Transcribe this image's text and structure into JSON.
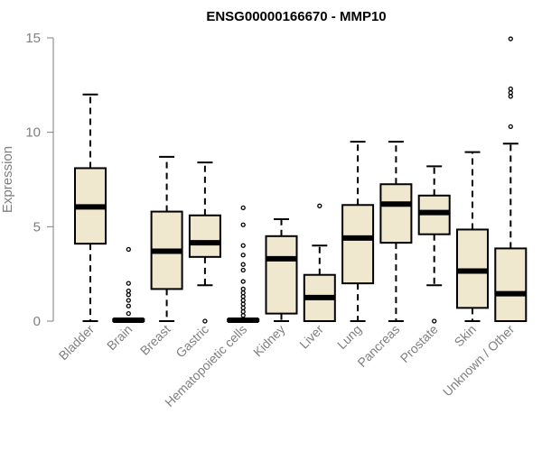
{
  "chart_data": {
    "type": "boxplot",
    "title": "ENSG00000166670 - MMP10",
    "ylabel": "Expression",
    "xlabel": "",
    "ylim": [
      0,
      15
    ],
    "yticks": [
      0,
      5,
      10,
      15
    ],
    "grid": false,
    "box_color": "#efe8cf",
    "categories": [
      "Bladder",
      "Brain",
      "Breast",
      "Gastric",
      "Hematopoietic cells",
      "Kidney",
      "Liver",
      "Lung",
      "Pancreas",
      "Prostate",
      "Skin",
      "Unknown / Other"
    ],
    "boxes": [
      {
        "name": "Bladder",
        "min": 0,
        "q1": 4.1,
        "median": 6.05,
        "q3": 8.1,
        "max": 12.0,
        "outliers": []
      },
      {
        "name": "Brain",
        "min": 0,
        "q1": 0,
        "median": 0.05,
        "q3": 0.1,
        "max": 0.1,
        "outliers": [
          0.4,
          0.8,
          1.1,
          1.4,
          1.6,
          2.0,
          3.8
        ]
      },
      {
        "name": "Breast",
        "min": 0,
        "q1": 1.7,
        "median": 3.7,
        "q3": 5.8,
        "max": 8.7,
        "outliers": []
      },
      {
        "name": "Gastric",
        "min": 1.9,
        "q1": 3.4,
        "median": 4.15,
        "q3": 5.6,
        "max": 8.4,
        "outliers": [
          0.0
        ]
      },
      {
        "name": "Hematopoietic cells",
        "min": 0,
        "q1": 0,
        "median": 0.05,
        "q3": 0.1,
        "max": 0.1,
        "outliers": [
          0.3,
          0.5,
          0.7,
          0.9,
          1.1,
          1.3,
          1.5,
          1.7,
          2.1,
          2.7,
          3.0,
          3.5,
          4.0,
          5.1,
          6.0
        ]
      },
      {
        "name": "Kidney",
        "min": 0,
        "q1": 0.4,
        "median": 3.3,
        "q3": 4.5,
        "max": 5.4,
        "outliers": []
      },
      {
        "name": "Liver",
        "min": 0,
        "q1": 0,
        "median": 1.25,
        "q3": 2.45,
        "max": 4.0,
        "outliers": [
          6.1
        ]
      },
      {
        "name": "Lung",
        "min": 0,
        "q1": 2.0,
        "median": 4.4,
        "q3": 6.15,
        "max": 9.5,
        "outliers": []
      },
      {
        "name": "Pancreas",
        "min": 0,
        "q1": 4.15,
        "median": 6.2,
        "q3": 7.25,
        "max": 9.5,
        "outliers": []
      },
      {
        "name": "Prostate",
        "min": 1.9,
        "q1": 4.6,
        "median": 5.75,
        "q3": 6.65,
        "max": 8.2,
        "outliers": [
          0.0
        ]
      },
      {
        "name": "Skin",
        "min": 0,
        "q1": 0.7,
        "median": 2.65,
        "q3": 4.85,
        "max": 8.95,
        "outliers": []
      },
      {
        "name": "Unknown / Other",
        "min": 0,
        "q1": 0,
        "median": 1.45,
        "q3": 3.85,
        "max": 9.4,
        "outliers": [
          10.3,
          11.9,
          12.1,
          12.3,
          14.95
        ]
      }
    ]
  }
}
